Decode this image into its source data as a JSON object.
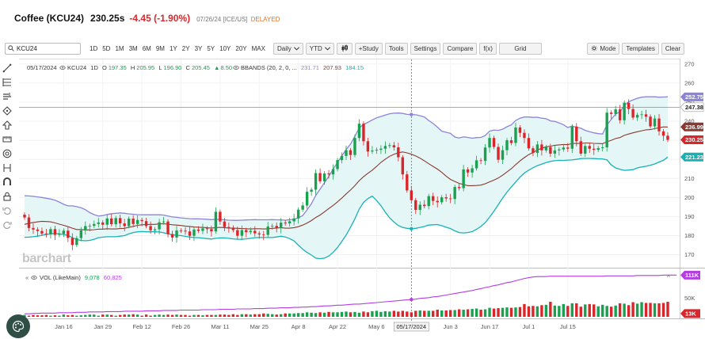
{
  "header": {
    "title": "Coffee (KCU24)",
    "price": "230.25s",
    "change": "-4.45 (-1.90%)",
    "meta": "07/26/24 [ICE/US]",
    "delayed": "DELAYED"
  },
  "toolbar": {
    "symbol_value": "KCU24",
    "ranges": [
      "1D",
      "5D",
      "1M",
      "3M",
      "6M",
      "9M",
      "1Y",
      "2Y",
      "3Y",
      "5Y",
      "10Y",
      "20Y",
      "MAX"
    ],
    "interval": "Daily",
    "period": "YTD",
    "study": "+Study",
    "tools": "Tools",
    "settings": "Settings",
    "compare": "Compare",
    "fx": "f(x)",
    "grid": "Grid",
    "mode": "Mode",
    "templates": "Templates",
    "clear": "Clear"
  },
  "watermark": "barchart",
  "colors": {
    "up": "#1aa150",
    "down": "#d9262b",
    "band_upper": "#8c84d8",
    "band_lower": "#18b2b5",
    "band_mid": "#8b3a32",
    "band_fill": "#e5f6f6",
    "volume_ma": "#b43ee0"
  },
  "chart_data": {
    "type": "candlestick",
    "title": "",
    "legend_price": {
      "date": "05/17/2024",
      "symbol": "KCU24",
      "interval": "1D",
      "open": "197.35",
      "high": "205.95",
      "low": "196.90",
      "close": "205.45",
      "change": "8.50",
      "study": "BBANDS (20, 2, 0, ...",
      "study_values": [
        "231.71",
        "207.93",
        "184.15"
      ]
    },
    "legend_volume": {
      "label": "VOL (LikeMain)",
      "value": "9,078",
      "ma": "60,825"
    },
    "y_ticks": [
      170,
      180,
      190,
      200,
      210,
      220,
      230,
      240,
      250,
      260,
      270
    ],
    "ylim": [
      164,
      272
    ],
    "y_tag_values": [
      252.75,
      247.38,
      236.99,
      230.25,
      221.23
    ],
    "y_tags": [
      "252.75",
      "247.38",
      "236.99",
      "230.25",
      "221.23"
    ],
    "volume_ticks": [
      "50K",
      "0K"
    ],
    "volume_tags": [
      "111K",
      "13K"
    ],
    "x_labels": [
      "Jan 16",
      "Jan 29",
      "Feb 12",
      "Feb 26",
      "Mar 11",
      "Mar 25",
      "Apr 8",
      "Apr 22",
      "May 6",
      "05/17/2024",
      "Jun 3",
      "Jun 17",
      "Jul 1",
      "Jul 15"
    ],
    "x_first_label": "2",
    "crosshair_price": 247.38,
    "series": [
      {
        "name": "KCU24",
        "close": [
          189.5,
          184.0,
          183.2,
          182.4,
          181.1,
          180.7,
          183.4,
          180.4,
          181.0,
          182.6,
          178.8,
          175.1,
          178.7,
          182.7,
          185.0,
          185.1,
          186.1,
          186.9,
          185.7,
          189.0,
          186.0,
          189.2,
          186.4,
          185.0,
          188.9,
          186.1,
          188.2,
          187.6,
          185.0,
          182.8,
          183.3,
          187.0,
          187.4,
          180.8,
          179.0,
          182.7,
          182.6,
          182.2,
          179.9,
          183.2,
          182.5,
          183.8,
          183.4,
          182.2,
          192.5,
          187.4,
          184.5,
          184.2,
          182.9,
          179.9,
          182.9,
          181.8,
          182.5,
          181.2,
          180.6,
          180.4,
          184.8,
          185.1,
          183.9,
          186.8,
          186.4,
          187.5,
          189.0,
          193.6,
          195.8,
          203.0,
          204.1,
          212.8,
          208.5,
          212.6,
          212.1,
          214.9,
          219.6,
          221.8,
          224.8,
          222.3,
          231.2,
          238.7,
          229.5,
          224.1,
          224.6,
          225.0,
          225.6,
          227.0,
          227.4,
          226.3,
          221.1,
          212.1,
          203.7,
          198.6,
          193.5,
          196.2,
          195.5,
          200.7,
          198.2,
          197.5,
          200.1,
          199.5,
          199.2,
          205.5,
          204.9,
          214.7,
          213.1,
          215.3,
          219.5,
          219.2,
          226.2,
          231.2,
          226.5,
          219.8,
          224.8,
          230.0,
          228.6,
          236.7,
          233.9,
          231.2,
          225.8,
          223.4,
          227.8,
          224.7,
          226.4,
          223.0,
          224.7,
          225.2,
          226.2,
          225.6,
          237.2,
          229.5,
          223.0,
          227.0,
          225.6,
          225.0,
          225.9,
          226.3,
          244.5,
          243.8,
          246.2,
          240.5,
          249.7,
          246.4,
          241.9,
          243.3,
          243.6,
          242.4,
          237.3,
          241.4,
          234.7,
          232.4,
          230.2
        ]
      },
      {
        "name": "BBANDS",
        "upper": [
          200.9,
          200.8,
          200.6,
          200.3,
          200.0,
          199.6,
          199.2,
          198.6,
          197.6,
          196.4,
          195.6,
          195.6,
          195.2,
          194.6,
          193.6,
          192.1,
          191.0,
          190.3,
          190.5,
          191.1,
          191.5,
          191.7,
          191.9,
          191.7,
          191.4,
          191.2,
          191.0,
          190.9,
          190.9,
          190.9,
          190.9,
          190.9,
          190.8,
          190.3,
          189.8,
          189.6,
          189.3,
          189.1,
          188.9,
          188.8,
          188.8,
          188.7,
          188.6,
          188.4,
          188.6,
          188.5,
          188.3,
          188.1,
          188.0,
          188.0,
          188.1,
          188.2,
          188.3,
          188.4,
          188.3,
          188.3,
          188.3,
          188.4,
          188.3,
          188.2,
          188.1,
          188.3,
          188.6,
          189.4,
          190.5,
          193.5,
          196.7,
          201.1,
          204.4,
          207.8,
          211.1,
          214.8,
          218.3,
          221.8,
          225.2,
          228.0,
          232.1,
          236.5,
          238.3,
          239.4,
          240.7,
          241.8,
          242.5,
          243.2,
          243.9,
          244.2,
          244.3,
          244.1,
          243.6,
          243.5,
          243.4,
          242.9,
          242.2,
          240.4,
          238.8,
          236.9,
          234.8,
          234.2,
          233.6,
          231.7,
          231.2,
          231.8,
          231.5,
          231.1,
          231.4,
          231.5,
          232.5,
          234.8,
          235.4,
          235.2,
          235.8,
          237.1,
          238.1,
          240.4,
          241.6,
          242.2,
          242.2,
          242.0,
          242.1,
          241.6,
          241.3,
          240.2,
          239.9,
          239.1,
          238.2,
          236.7,
          237.5,
          236.8,
          236.3,
          235.2,
          234.5,
          233.9,
          233.5,
          233.3,
          238.0,
          241.0,
          243.8,
          244.9,
          248.2,
          250.2,
          251.2,
          252.0,
          252.6,
          252.8,
          252.8,
          252.8,
          252.6,
          252.7,
          252.8
        ]
      },
      {
        "name": "BBANDS",
        "middle": [
          185.9,
          186.5,
          186.9,
          187.2,
          187.5,
          187.4,
          187.2,
          186.7,
          186.0,
          185.4,
          184.7,
          183.9,
          183.2,
          183.2,
          183.0,
          183.0,
          183.1,
          183.4,
          183.4,
          183.6,
          183.5,
          183.5,
          183.7,
          183.8,
          184.4,
          184.8,
          185.4,
          185.7,
          185.8,
          185.9,
          185.9,
          186.2,
          186.2,
          186.0,
          185.7,
          185.5,
          185.3,
          185.0,
          184.8,
          184.5,
          184.4,
          184.3,
          184.1,
          184.0,
          184.2,
          184.3,
          184.2,
          184.0,
          183.9,
          183.8,
          183.7,
          183.6,
          183.5,
          183.6,
          183.6,
          183.5,
          183.6,
          183.8,
          184.0,
          184.2,
          183.9,
          183.9,
          184.2,
          184.7,
          185.5,
          186.6,
          187.9,
          189.5,
          190.8,
          192.5,
          194.2,
          195.8,
          197.7,
          199.7,
          201.9,
          203.9,
          206.2,
          208.8,
          210.9,
          212.7,
          214.3,
          216.3,
          218.4,
          220.1,
          221.6,
          222.7,
          223.5,
          223.9,
          223.4,
          222.7,
          221.8,
          220.6,
          219.2,
          217.7,
          216.3,
          214.9,
          213.2,
          211.2,
          209.5,
          208.4,
          207.4,
          206.8,
          206.2,
          206.2,
          206.3,
          206.5,
          207.2,
          208.2,
          209.1,
          210.2,
          211.7,
          213.4,
          215.1,
          217.2,
          219.2,
          220.9,
          222.5,
          223.6,
          224.9,
          225.8,
          226.6,
          226.9,
          227.4,
          227.6,
          227.8,
          227.7,
          228.3,
          228.4,
          228.3,
          228.6,
          228.6,
          228.4,
          228.3,
          228.2,
          229.2,
          230.0,
          230.9,
          231.4,
          232.6,
          233.3,
          233.9,
          234.5,
          235.0,
          235.5,
          235.6,
          236.1,
          236.6,
          237.0,
          237.0
        ]
      },
      {
        "name": "BBANDS",
        "lower": [
          179.1,
          179.2,
          179.4,
          179.7,
          180.2,
          180.6,
          180.9,
          181.1,
          180.9,
          180.6,
          180.1,
          178.9,
          177.9,
          177.5,
          177.3,
          177.5,
          178.1,
          178.9,
          179.2,
          179.4,
          179.4,
          179.4,
          179.7,
          180.0,
          180.9,
          181.6,
          182.0,
          182.1,
          182.0,
          182.0,
          182.0,
          181.9,
          181.5,
          180.9,
          180.5,
          180.2,
          180.0,
          179.6,
          179.2,
          179.0,
          178.9,
          178.7,
          178.4,
          178.2,
          178.6,
          178.8,
          178.8,
          178.6,
          178.3,
          178.1,
          178.1,
          178.3,
          178.6,
          178.9,
          179.0,
          179.0,
          179.0,
          179.0,
          179.3,
          179.7,
          179.3,
          178.4,
          177.2,
          175.0,
          172.9,
          171.2,
          169.8,
          168.2,
          167.9,
          168.2,
          169.3,
          171.2,
          173.7,
          176.9,
          180.3,
          184.4,
          188.8,
          193.9,
          197.4,
          199.4,
          200.7,
          198.4,
          195.7,
          192.3,
          189.3,
          187.1,
          185.3,
          184.3,
          183.8,
          183.6,
          183.8,
          184.3,
          184.8,
          185.5,
          185.7,
          185.8,
          185.2,
          184.4,
          183.7,
          182.5,
          181.6,
          181.4,
          181.6,
          182.1,
          183.3,
          184.8,
          186.8,
          189.7,
          192.8,
          196.2,
          199.7,
          202.8,
          205.5,
          208.1,
          210.7,
          212.8,
          214.3,
          215.6,
          216.7,
          217.5,
          218.3,
          218.9,
          219.3,
          219.5,
          219.4,
          219.6,
          219.7,
          220.0,
          220.4,
          220.5,
          220.5,
          220.4,
          220.3,
          220.2,
          219.7,
          217.1,
          215.5,
          214.8,
          214.2,
          214.4,
          214.6,
          215.5,
          216.0,
          216.4,
          216.9,
          217.6,
          218.6,
          219.5,
          221.2
        ]
      },
      {
        "name": "VOL (LikeMain)",
        "values": [
          5,
          3,
          5,
          4,
          4,
          5,
          3,
          4,
          3,
          6,
          4,
          5,
          3,
          4,
          5,
          6,
          6,
          3,
          6,
          6,
          5,
          3,
          5,
          6,
          6,
          7,
          6,
          3,
          6,
          3,
          5,
          6,
          5,
          6,
          5,
          6,
          5,
          5,
          3,
          5,
          5,
          4,
          5,
          5,
          5,
          6,
          6,
          5,
          7,
          5,
          7,
          7,
          6,
          7,
          7,
          9,
          8,
          7,
          6,
          7,
          9,
          9,
          9,
          10,
          10,
          12,
          11,
          10,
          12,
          11,
          13,
          12,
          12,
          13,
          14,
          12,
          13,
          11,
          14,
          12,
          15,
          16,
          13,
          15,
          14,
          16,
          14,
          16,
          14,
          12,
          16,
          17,
          16,
          16,
          16,
          19,
          17,
          17,
          18,
          18,
          20,
          19,
          20,
          21,
          22,
          19,
          20,
          24,
          22,
          23,
          24,
          25,
          24,
          25,
          26,
          34,
          28,
          29,
          28,
          31,
          32,
          40,
          30,
          29,
          34,
          29,
          36,
          36,
          27,
          33,
          34,
          33,
          28,
          32,
          29,
          27,
          30,
          36,
          35,
          31,
          39,
          35,
          39,
          37,
          37,
          36,
          36,
          37,
          40,
          28,
          16
        ]
      }
    ],
    "volume_ma_series": {
      "name": "volume MA",
      "values": [
        8,
        8,
        9,
        9,
        10,
        10,
        10,
        10,
        11,
        11,
        11,
        11,
        12,
        12,
        12,
        13,
        13,
        13,
        13,
        14,
        14,
        14,
        14,
        15,
        15,
        15,
        15,
        15,
        16,
        16,
        16,
        16,
        17,
        17,
        17,
        17,
        18,
        18,
        18,
        18,
        18,
        19,
        19,
        19,
        19,
        20,
        20,
        20,
        20,
        21,
        21,
        21,
        21,
        22,
        22,
        22,
        23,
        23,
        23,
        24,
        24,
        24,
        25,
        25,
        26,
        26,
        27,
        27,
        28,
        29,
        29,
        30,
        31,
        31,
        32,
        33,
        34,
        34,
        35,
        36,
        37,
        38,
        39,
        40,
        41,
        42,
        43,
        44,
        45,
        46,
        47,
        49,
        50,
        51,
        53,
        54,
        56,
        58,
        60,
        62,
        64,
        66,
        68,
        70,
        73,
        75,
        78,
        80,
        83,
        85,
        88,
        91,
        93,
        96,
        99,
        102,
        104,
        106,
        107,
        107,
        107,
        108,
        108,
        108,
        108,
        108,
        108,
        108,
        108,
        108,
        108,
        108,
        108,
        108,
        109,
        109,
        109,
        109,
        109,
        109,
        109,
        110,
        110,
        110,
        110,
        110,
        110,
        111,
        111,
        111,
        111
      ]
    }
  }
}
